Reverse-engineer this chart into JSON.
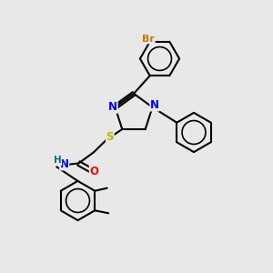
{
  "background_color": "#e8e8e8",
  "bond_color": "#000000",
  "bond_width": 1.5,
  "atom_colors": {
    "N": "#0000ff",
    "O": "#ff0000",
    "S": "#b8b800",
    "Br": "#cc7700",
    "H": "#007070",
    "C": "#000000"
  },
  "font_size": 8.5,
  "fig_width": 3.0,
  "fig_height": 3.0,
  "dpi": 100,
  "xlim": [
    0,
    10
  ],
  "ylim": [
    0,
    10
  ]
}
